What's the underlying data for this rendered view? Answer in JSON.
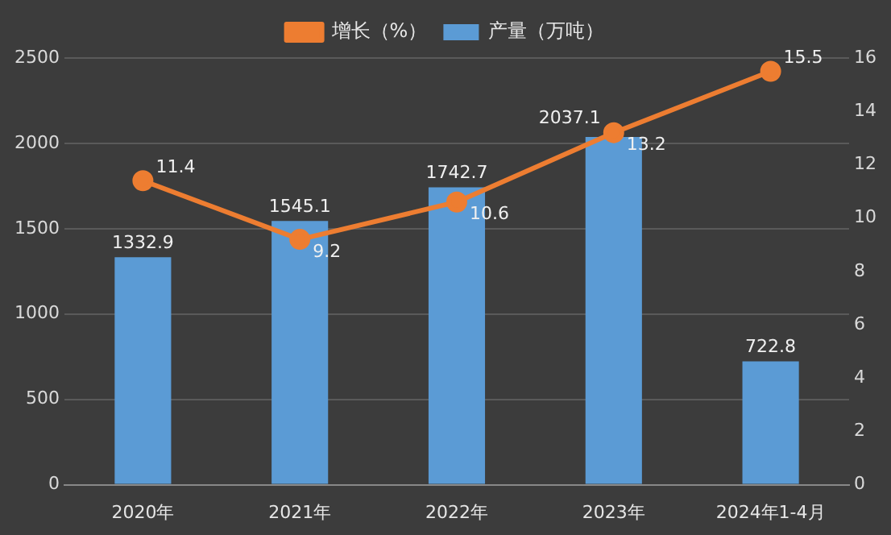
{
  "chart_data": {
    "type": "bar",
    "categories": [
      "2020年",
      "2021年",
      "2022年",
      "2023年",
      "2024年1-4月"
    ],
    "series": [
      {
        "name": "产量（万吨）",
        "color": "#5b9bd5",
        "values": [
          1332.9,
          1545.1,
          1742.7,
          2037.1,
          722.8
        ]
      },
      {
        "name": "增长（%）",
        "type": "line",
        "axis": "y2",
        "color": "#ed7d31",
        "values": [
          11.4,
          9.2,
          10.6,
          13.2,
          15.5
        ]
      }
    ],
    "ylim": [
      0,
      2500
    ],
    "yticks": [
      0,
      500,
      1000,
      1500,
      2000,
      2500
    ],
    "y2lim": [
      0,
      16
    ],
    "y2ticks": [
      0,
      2,
      4,
      6,
      8,
      10,
      12,
      14,
      16
    ],
    "grid": "y",
    "legend": "top",
    "marker": "circle",
    "line_style": "solid",
    "data_labels": true
  }
}
